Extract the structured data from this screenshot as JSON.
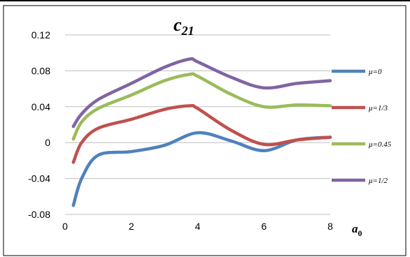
{
  "chart_data": {
    "type": "line",
    "title": "c",
    "title_subscript": "21",
    "xlabel": "a",
    "xlabel_subscript": "0",
    "ylabel": "",
    "xlim": [
      0,
      8
    ],
    "ylim": [
      -0.08,
      0.12
    ],
    "x_ticks": [
      0,
      2,
      4,
      6,
      8
    ],
    "x_tick_labels": [
      "0",
      "2",
      "4",
      "6",
      "8"
    ],
    "y_ticks": [
      -0.08,
      -0.04,
      0,
      0.04,
      0.08,
      0.12
    ],
    "y_tick_labels": [
      "-0.08",
      "-0.04",
      "0",
      "0.04",
      "0.08",
      "0.12"
    ],
    "grid": "horizontal",
    "legend_position": "right",
    "series": [
      {
        "name": "μ=0",
        "color": "#4f81bd",
        "points": [
          [
            0.25,
            -0.07
          ],
          [
            0.5,
            -0.04
          ],
          [
            1.0,
            -0.014
          ],
          [
            2.0,
            -0.01
          ],
          [
            3.0,
            -0.003
          ],
          [
            4.0,
            0.011
          ],
          [
            5.0,
            0.002
          ],
          [
            6.0,
            -0.009
          ],
          [
            7.0,
            0.003
          ],
          [
            8.0,
            0.006
          ]
        ]
      },
      {
        "name": "μ=1/3",
        "color": "#c0504d",
        "points": [
          [
            0.25,
            -0.022
          ],
          [
            0.5,
            0.0
          ],
          [
            1.0,
            0.016
          ],
          [
            2.0,
            0.026
          ],
          [
            3.0,
            0.037
          ],
          [
            3.75,
            0.041
          ],
          [
            4.0,
            0.038
          ],
          [
            5.0,
            0.014
          ],
          [
            6.0,
            -0.002
          ],
          [
            7.0,
            0.003
          ],
          [
            8.0,
            0.006
          ]
        ]
      },
      {
        "name": "μ=0.45",
        "color": "#9bbb59",
        "points": [
          [
            0.25,
            0.004
          ],
          [
            0.5,
            0.023
          ],
          [
            1.0,
            0.038
          ],
          [
            2.0,
            0.053
          ],
          [
            3.0,
            0.069
          ],
          [
            3.75,
            0.076
          ],
          [
            4.0,
            0.074
          ],
          [
            5.0,
            0.054
          ],
          [
            6.0,
            0.04
          ],
          [
            7.0,
            0.042
          ],
          [
            8.0,
            0.041
          ]
        ]
      },
      {
        "name": "μ=1/2",
        "color": "#8064a2",
        "points": [
          [
            0.25,
            0.018
          ],
          [
            0.5,
            0.032
          ],
          [
            1.0,
            0.048
          ],
          [
            2.0,
            0.066
          ],
          [
            3.0,
            0.084
          ],
          [
            3.75,
            0.093
          ],
          [
            4.0,
            0.09
          ],
          [
            5.0,
            0.073
          ],
          [
            6.0,
            0.061
          ],
          [
            7.0,
            0.066
          ],
          [
            8.0,
            0.069
          ]
        ]
      }
    ]
  }
}
